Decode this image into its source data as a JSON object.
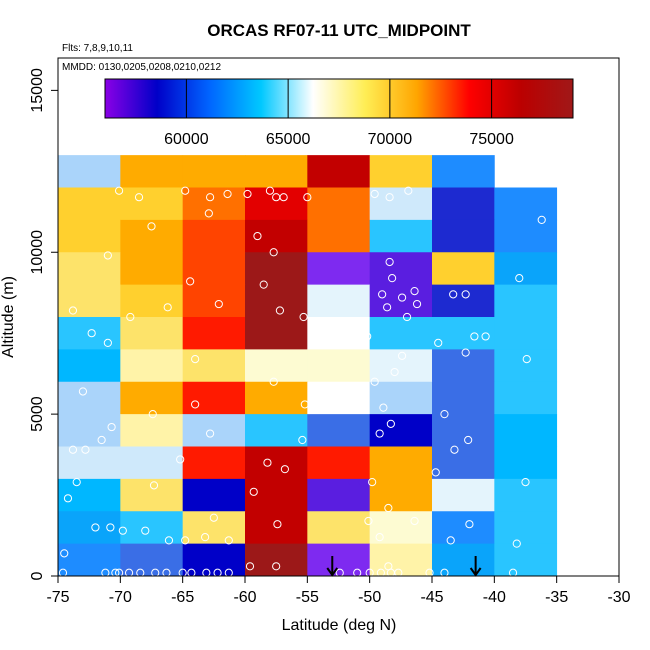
{
  "chart_data": {
    "type": "heatmap",
    "title": "ORCAS RF07-11 UTC_MIDPOINT",
    "subtitle": "Flts: 7,8,9,10,11",
    "dates_label": "MMDD: 0130,0205,0208,0210,0212",
    "xlabel": "Latitude (deg N)",
    "ylabel": "Altitude (m)",
    "xlim": [
      -75,
      -30
    ],
    "ylim": [
      0,
      16000
    ],
    "x_ticks": [
      -75,
      -70,
      -65,
      -60,
      -55,
      -50,
      -45,
      -40,
      -35,
      -30
    ],
    "x_tick_labels": [
      "-75",
      "-70",
      "-65",
      "-60",
      "-55",
      "-50",
      "-45",
      "-40",
      "-35",
      "-30"
    ],
    "y_ticks": [
      0,
      5000,
      10000,
      15000
    ],
    "y_tick_labels": [
      "0",
      "5000",
      "10000",
      "15000"
    ],
    "colorbar": {
      "min": 56000,
      "max": 79000,
      "ticks": [
        60000,
        65000,
        70000,
        75000
      ],
      "tick_labels": [
        "60000",
        "65000",
        "70000",
        "75000"
      ],
      "colors": [
        "#8a00e6",
        "#0000c8",
        "#0064ff",
        "#00c8ff",
        "#ffffff",
        "#ffee55",
        "#ffa500",
        "#ff0000",
        "#bb0000",
        "#a01818"
      ]
    },
    "cell_colors": {
      "A": "#9c1818",
      "B": "#c20000",
      "C": "#e30000",
      "D": "#ff1a00",
      "E": "#ff4400",
      "F": "#ff7000",
      "G": "#ffab00",
      "H": "#ffd02e",
      "I": "#fde36a",
      "J": "#fff3a8",
      "K": "#fdfbd2",
      "L": "#ffffff",
      "M": "#e4f4fc",
      "N": "#cfe9fb",
      "O": "#aad4fa",
      "P": "#29c5ff",
      "Q": "#00b7ff",
      "R": "#0aa4fa",
      "S": "#1e8cff",
      "T": "#3a6ee6",
      "U": "#2547de",
      "V": "#1d2ad0",
      "W": "#0000c8",
      "X": "#5a1ee0",
      "Y": "#7e2af0"
    },
    "x_bins": [
      -75,
      -70,
      -65,
      -60,
      -55,
      -50,
      -45,
      -40,
      -35
    ],
    "y_bins": [
      0,
      1000,
      2000,
      3000,
      4000,
      5000,
      6000,
      7000,
      8000,
      9000,
      10000,
      11000,
      12000
    ],
    "grid": [
      "OGGGBHS.",
      "HHFCFNVS",
      "HGEBFPVS",
      "IGEAYXHR",
      "IHEAMXVP",
      "PIDALPPP",
      "QJIKKMTP",
      "OGDGLOTP",
      "OJOPTWTQ",
      "NNDBDGTQ",
      "QIWBXGMP",
      "RPIBIKSP",
      "STWAYJRP"
    ],
    "observations": [
      {
        "lat": -74.6,
        "alt": 100
      },
      {
        "lat": -74.5,
        "alt": 700
      },
      {
        "lat": -74.2,
        "alt": 2400
      },
      {
        "lat": -73.5,
        "alt": 2900
      },
      {
        "lat": -72.8,
        "alt": 3900
      },
      {
        "lat": -71.5,
        "alt": 4200
      },
      {
        "lat": -72.0,
        "alt": 1500
      },
      {
        "lat": -70.8,
        "alt": 1500
      },
      {
        "lat": -70.4,
        "alt": 100
      },
      {
        "lat": -71.2,
        "alt": 100
      },
      {
        "lat": -70.1,
        "alt": 100
      },
      {
        "lat": -69.3,
        "alt": 100
      },
      {
        "lat": -68.4,
        "alt": 100
      },
      {
        "lat": -67.2,
        "alt": 100
      },
      {
        "lat": -66.3,
        "alt": 100
      },
      {
        "lat": -65.0,
        "alt": 100
      },
      {
        "lat": -64.3,
        "alt": 100
      },
      {
        "lat": -63.1,
        "alt": 100
      },
      {
        "lat": -62.2,
        "alt": 100
      },
      {
        "lat": -61.3,
        "alt": 100
      },
      {
        "lat": -59.6,
        "alt": 300
      },
      {
        "lat": -57.5,
        "alt": 300
      },
      {
        "lat": -52.4,
        "alt": 100
      },
      {
        "lat": -51.0,
        "alt": 100
      },
      {
        "lat": -50.0,
        "alt": 100
      },
      {
        "lat": -49.1,
        "alt": 100
      },
      {
        "lat": -48.3,
        "alt": 100
      },
      {
        "lat": -47.7,
        "alt": 100
      },
      {
        "lat": -48.5,
        "alt": 300
      },
      {
        "lat": -45.2,
        "alt": 100
      },
      {
        "lat": -44.0,
        "alt": 100
      },
      {
        "lat": -38.5,
        "alt": 100
      },
      {
        "lat": -69.8,
        "alt": 1400
      },
      {
        "lat": -68.0,
        "alt": 1400
      },
      {
        "lat": -66.1,
        "alt": 1100
      },
      {
        "lat": -64.8,
        "alt": 1100
      },
      {
        "lat": -63.2,
        "alt": 1200
      },
      {
        "lat": -62.5,
        "alt": 1800
      },
      {
        "lat": -61.3,
        "alt": 1100
      },
      {
        "lat": -57.4,
        "alt": 1600
      },
      {
        "lat": -50.1,
        "alt": 1700
      },
      {
        "lat": -49.2,
        "alt": 1200
      },
      {
        "lat": -48.5,
        "alt": 2100
      },
      {
        "lat": -46.4,
        "alt": 1700
      },
      {
        "lat": -43.5,
        "alt": 1100
      },
      {
        "lat": -42.0,
        "alt": 1600
      },
      {
        "lat": -38.2,
        "alt": 1000
      },
      {
        "lat": -73.8,
        "alt": 3900
      },
      {
        "lat": -70.7,
        "alt": 4600
      },
      {
        "lat": -67.3,
        "alt": 2800
      },
      {
        "lat": -65.2,
        "alt": 3600
      },
      {
        "lat": -62.8,
        "alt": 4400
      },
      {
        "lat": -59.3,
        "alt": 2600
      },
      {
        "lat": -58.2,
        "alt": 3500
      },
      {
        "lat": -56.8,
        "alt": 3300
      },
      {
        "lat": -55.4,
        "alt": 4200
      },
      {
        "lat": -49.8,
        "alt": 2900
      },
      {
        "lat": -49.2,
        "alt": 4400
      },
      {
        "lat": -48.3,
        "alt": 4700
      },
      {
        "lat": -44.7,
        "alt": 3200
      },
      {
        "lat": -43.2,
        "alt": 3900
      },
      {
        "lat": -42.1,
        "alt": 4200
      },
      {
        "lat": -37.5,
        "alt": 2900
      },
      {
        "lat": -73.0,
        "alt": 5700
      },
      {
        "lat": -67.4,
        "alt": 5000
      },
      {
        "lat": -64.0,
        "alt": 6700
      },
      {
        "lat": -64.0,
        "alt": 5300
      },
      {
        "lat": -57.7,
        "alt": 6000
      },
      {
        "lat": -55.2,
        "alt": 5300
      },
      {
        "lat": -49.6,
        "alt": 6000
      },
      {
        "lat": -48.9,
        "alt": 5200
      },
      {
        "lat": -47.4,
        "alt": 6800
      },
      {
        "lat": -48.0,
        "alt": 6300
      },
      {
        "lat": -44.5,
        "alt": 7200
      },
      {
        "lat": -44.0,
        "alt": 5000
      },
      {
        "lat": -42.3,
        "alt": 6900
      },
      {
        "lat": -40.7,
        "alt": 7400
      },
      {
        "lat": -37.4,
        "alt": 6700
      },
      {
        "lat": -72.3,
        "alt": 7500
      },
      {
        "lat": -71.0,
        "alt": 7200
      },
      {
        "lat": -69.2,
        "alt": 8000
      },
      {
        "lat": -66.2,
        "alt": 8300
      },
      {
        "lat": -64.4,
        "alt": 9100
      },
      {
        "lat": -62.1,
        "alt": 8400
      },
      {
        "lat": -58.5,
        "alt": 9000
      },
      {
        "lat": -57.2,
        "alt": 8200
      },
      {
        "lat": -55.3,
        "alt": 8000
      },
      {
        "lat": -49.0,
        "alt": 8700
      },
      {
        "lat": -48.6,
        "alt": 8300
      },
      {
        "lat": -47.4,
        "alt": 8600
      },
      {
        "lat": -47.0,
        "alt": 8000
      },
      {
        "lat": -43.3,
        "alt": 8700
      },
      {
        "lat": -42.3,
        "alt": 8700
      },
      {
        "lat": -41.6,
        "alt": 7400
      },
      {
        "lat": -38.0,
        "alt": 9200
      },
      {
        "lat": -71.0,
        "alt": 9900
      },
      {
        "lat": -67.5,
        "alt": 10800
      },
      {
        "lat": -59.0,
        "alt": 10500
      },
      {
        "lat": -57.7,
        "alt": 10000
      },
      {
        "lat": -48.2,
        "alt": 9200
      },
      {
        "lat": -48.4,
        "alt": 9700
      },
      {
        "lat": -36.2,
        "alt": 11000
      },
      {
        "lat": -73.8,
        "alt": 8200
      },
      {
        "lat": -68.5,
        "alt": 11700
      },
      {
        "lat": -70.1,
        "alt": 11900
      },
      {
        "lat": -64.8,
        "alt": 11900
      },
      {
        "lat": -62.8,
        "alt": 11700
      },
      {
        "lat": -61.4,
        "alt": 11800
      },
      {
        "lat": -59.8,
        "alt": 11800
      },
      {
        "lat": -58.0,
        "alt": 11900
      },
      {
        "lat": -57.5,
        "alt": 11700
      },
      {
        "lat": -56.9,
        "alt": 11700
      },
      {
        "lat": -55.0,
        "alt": 11700
      },
      {
        "lat": -62.9,
        "alt": 11200
      },
      {
        "lat": -49.6,
        "alt": 11800
      },
      {
        "lat": -48.4,
        "alt": 11700
      },
      {
        "lat": -46.9,
        "alt": 11900
      },
      {
        "lat": -46.4,
        "alt": 8800
      },
      {
        "lat": -50.2,
        "alt": 7400
      },
      {
        "lat": -46.2,
        "alt": 8400
      }
    ],
    "arrows": [
      {
        "lat": -53.0,
        "alt": 0
      },
      {
        "lat": -41.5,
        "alt": 0
      }
    ]
  }
}
